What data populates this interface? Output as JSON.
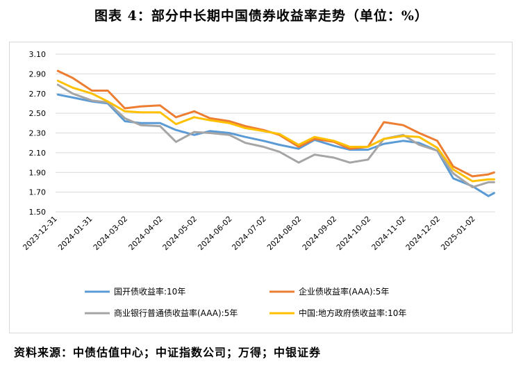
{
  "title": "图表 4：部分中长期中国债券收益率走势（单位：%）",
  "source": "资料来源：中债估值中心；中证指数公司；万得；中银证券",
  "chart_data": {
    "type": "line",
    "title": "图表 4：部分中长期中国债券收益率走势（单位：%）",
    "xlabel": "",
    "ylabel": "",
    "ylim": [
      1.5,
      3.1
    ],
    "yticks": [
      "3.10",
      "2.90",
      "2.70",
      "2.50",
      "2.30",
      "2.10",
      "1.90",
      "1.70",
      "1.50"
    ],
    "x_range": [
      "2023-12-31",
      "2025-01-21"
    ],
    "xticks": [
      "2023-12-31",
      "2024-01-31",
      "2024-03-02",
      "2024-04-02",
      "2024-05-02",
      "2024-06-02",
      "2024-07-02",
      "2024-08-02",
      "2024-09-02",
      "2024-10-02",
      "2024-11-02",
      "2024-12-02",
      "2025-01-02"
    ],
    "grid": true,
    "legend_position": "bottom",
    "x": [
      "2024-01-02",
      "2024-01-15",
      "2024-02-01",
      "2024-02-15",
      "2024-03-01",
      "2024-03-15",
      "2024-04-01",
      "2024-04-15",
      "2024-05-01",
      "2024-05-15",
      "2024-06-01",
      "2024-06-15",
      "2024-07-01",
      "2024-07-15",
      "2024-08-01",
      "2024-08-15",
      "2024-09-01",
      "2024-09-15",
      "2024-10-01",
      "2024-10-15",
      "2024-11-01",
      "2024-11-15",
      "2024-12-01",
      "2024-12-15",
      "2025-01-01",
      "2025-01-15",
      "2025-01-20"
    ],
    "series": [
      {
        "name": "国开债收益率:10年",
        "color": "#5b9bd5",
        "values": [
          2.69,
          2.66,
          2.62,
          2.6,
          2.42,
          2.4,
          2.4,
          2.33,
          2.28,
          2.32,
          2.3,
          2.26,
          2.22,
          2.18,
          2.14,
          2.23,
          2.17,
          2.13,
          2.13,
          2.19,
          2.22,
          2.2,
          2.12,
          1.84,
          1.76,
          1.66,
          1.69
        ]
      },
      {
        "name": "企业债收益率(AAA):5年",
        "color": "#ed7d31",
        "values": [
          2.93,
          2.86,
          2.73,
          2.73,
          2.55,
          2.57,
          2.58,
          2.46,
          2.52,
          2.45,
          2.42,
          2.37,
          2.33,
          2.28,
          2.16,
          2.24,
          2.21,
          2.14,
          2.16,
          2.41,
          2.38,
          2.3,
          2.22,
          1.96,
          1.86,
          1.88,
          1.9
        ]
      },
      {
        "name": "商业银行普通债收益率(AAA):5年",
        "color": "#a5a5a5",
        "values": [
          2.79,
          2.7,
          2.63,
          2.61,
          2.45,
          2.38,
          2.37,
          2.21,
          2.31,
          2.3,
          2.28,
          2.2,
          2.16,
          2.11,
          2.0,
          2.08,
          2.05,
          2.0,
          2.03,
          2.24,
          2.28,
          2.18,
          2.12,
          1.89,
          1.75,
          1.8,
          1.8
        ]
      },
      {
        "name": "中国:地方政府债收益率:10年",
        "color": "#ffc000",
        "values": [
          2.83,
          2.76,
          2.7,
          2.62,
          2.52,
          2.51,
          2.51,
          2.39,
          2.46,
          2.43,
          2.4,
          2.35,
          2.32,
          2.29,
          2.18,
          2.26,
          2.22,
          2.16,
          2.16,
          2.24,
          2.27,
          2.26,
          2.15,
          1.93,
          1.81,
          1.83,
          1.83
        ]
      }
    ]
  }
}
